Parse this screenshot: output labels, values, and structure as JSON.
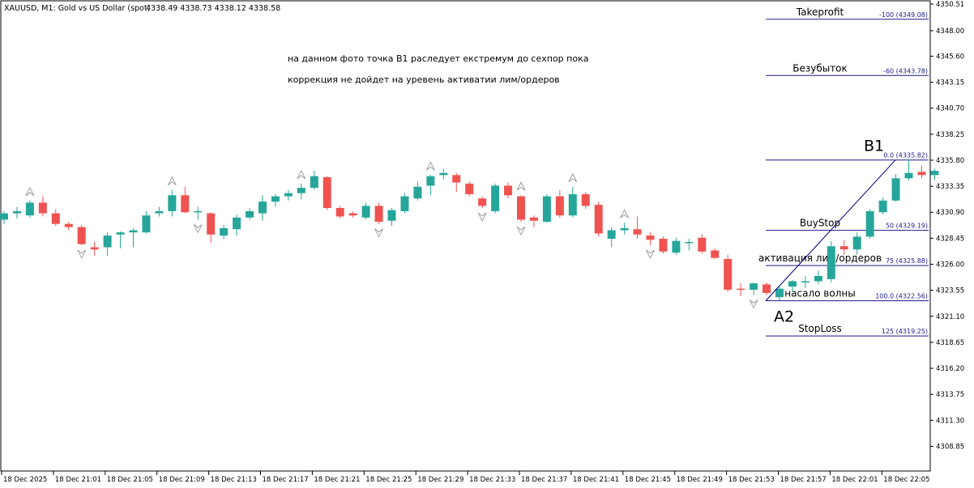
{
  "header": {
    "symbol": "XAUUSD, M1:  Gold vs US Dollar (spot)",
    "ohlc": "4338.49 4338.73 4338.12 4338.58"
  },
  "annotations": {
    "line1": "на данном фото точка B1 раследует екстремум до сехпор пока",
    "line2": "коррекция не дойдет на уревень активатии лим/ордеров"
  },
  "colors": {
    "bull": "#26a69a",
    "bear": "#ef5350",
    "fibo": "#1a1a8c",
    "trend": "#000080",
    "axis": "#000000",
    "fractal": "#a0a0a0"
  },
  "chart_data": {
    "type": "candlestick",
    "ylim": [
      4306.0,
      4350.6
    ],
    "y_ticks": [
      "4350.51",
      "4348.00",
      "4345.60",
      "4343.15",
      "4340.70",
      "4338.25",
      "4335.80",
      "4333.35",
      "4330.90",
      "4328.45",
      "4326.00",
      "4323.55",
      "4321.10",
      "4318.65",
      "4316.20",
      "4313.75",
      "4311.30",
      "4308.85"
    ],
    "y_tick_values": [
      4350.51,
      4348.0,
      4345.6,
      4343.15,
      4340.7,
      4338.25,
      4335.8,
      4333.35,
      4330.9,
      4328.45,
      4326.0,
      4323.55,
      4321.1,
      4318.65,
      4316.2,
      4313.75,
      4311.3,
      4308.85
    ],
    "x_ticks": [
      "18 Dec 2025",
      "18 Dec 21:01",
      "18 Dec 21:05",
      "18 Dec 21:09",
      "18 Dec 21:13",
      "18 Dec 21:17",
      "18 Dec 21:21",
      "18 Dec 21:25",
      "18 Dec 21:29",
      "18 Dec 21:33",
      "18 Dec 21:37",
      "18 Dec 21:41",
      "18 Dec 21:45",
      "18 Dec 21:49",
      "18 Dec 21:53",
      "18 Dec 21:57",
      "18 Dec 22:01",
      "18 Dec 22:05"
    ],
    "candles": [
      {
        "o": 4330.2,
        "h": 4331.0,
        "l": 4329.8,
        "c": 4330.8
      },
      {
        "o": 4330.8,
        "h": 4331.4,
        "l": 4330.3,
        "c": 4331.0
      },
      {
        "o": 4330.6,
        "h": 4332.0,
        "l": 4330.4,
        "c": 4331.8
      },
      {
        "o": 4331.8,
        "h": 4332.4,
        "l": 4330.5,
        "c": 4330.8
      },
      {
        "o": 4330.8,
        "h": 4331.2,
        "l": 4329.6,
        "c": 4329.8
      },
      {
        "o": 4329.8,
        "h": 4330.0,
        "l": 4329.2,
        "c": 4329.5
      },
      {
        "o": 4329.5,
        "h": 4329.7,
        "l": 4327.8,
        "c": 4327.9
      },
      {
        "o": 4327.6,
        "h": 4328.1,
        "l": 4326.8,
        "c": 4327.4
      },
      {
        "o": 4327.6,
        "h": 4329.0,
        "l": 4326.8,
        "c": 4328.7
      },
      {
        "o": 4328.8,
        "h": 4329.1,
        "l": 4327.5,
        "c": 4329.0
      },
      {
        "o": 4329.0,
        "h": 4329.4,
        "l": 4327.6,
        "c": 4329.2
      },
      {
        "o": 4329.0,
        "h": 4331.0,
        "l": 4328.9,
        "c": 4330.6
      },
      {
        "o": 4330.8,
        "h": 4331.4,
        "l": 4330.5,
        "c": 4331.0
      },
      {
        "o": 4331.0,
        "h": 4333.0,
        "l": 4330.5,
        "c": 4332.5
      },
      {
        "o": 4332.5,
        "h": 4333.3,
        "l": 4330.8,
        "c": 4330.9
      },
      {
        "o": 4331.0,
        "h": 4331.4,
        "l": 4330.2,
        "c": 4331.0
      },
      {
        "o": 4330.8,
        "h": 4330.9,
        "l": 4328.0,
        "c": 4328.8
      },
      {
        "o": 4328.7,
        "h": 4329.7,
        "l": 4328.4,
        "c": 4329.4
      },
      {
        "o": 4329.3,
        "h": 4330.7,
        "l": 4328.7,
        "c": 4330.4
      },
      {
        "o": 4330.4,
        "h": 4331.3,
        "l": 4330.2,
        "c": 4331.0
      },
      {
        "o": 4330.8,
        "h": 4332.5,
        "l": 4330.1,
        "c": 4331.9
      },
      {
        "o": 4331.9,
        "h": 4332.6,
        "l": 4331.4,
        "c": 4332.4
      },
      {
        "o": 4332.4,
        "h": 4333.0,
        "l": 4332.0,
        "c": 4332.7
      },
      {
        "o": 4332.7,
        "h": 4333.6,
        "l": 4332.1,
        "c": 4333.2
      },
      {
        "o": 4333.2,
        "h": 4334.8,
        "l": 4333.0,
        "c": 4334.3
      },
      {
        "o": 4334.2,
        "h": 4334.3,
        "l": 4331.1,
        "c": 4331.3
      },
      {
        "o": 4331.3,
        "h": 4331.5,
        "l": 4330.3,
        "c": 4330.5
      },
      {
        "o": 4330.8,
        "h": 4331.0,
        "l": 4330.4,
        "c": 4330.6
      },
      {
        "o": 4330.4,
        "h": 4331.8,
        "l": 4330.2,
        "c": 4331.5
      },
      {
        "o": 4331.5,
        "h": 4331.8,
        "l": 4329.8,
        "c": 4330.0
      },
      {
        "o": 4330.1,
        "h": 4331.3,
        "l": 4329.6,
        "c": 4331.1
      },
      {
        "o": 4331.0,
        "h": 4332.7,
        "l": 4330.8,
        "c": 4332.4
      },
      {
        "o": 4332.2,
        "h": 4333.8,
        "l": 4332.0,
        "c": 4333.3
      },
      {
        "o": 4333.4,
        "h": 4334.4,
        "l": 4332.5,
        "c": 4334.3
      },
      {
        "o": 4334.4,
        "h": 4335.0,
        "l": 4334.0,
        "c": 4334.6
      },
      {
        "o": 4334.4,
        "h": 4334.6,
        "l": 4332.8,
        "c": 4333.7
      },
      {
        "o": 4333.6,
        "h": 4333.8,
        "l": 4332.4,
        "c": 4332.6
      },
      {
        "o": 4332.2,
        "h": 4332.4,
        "l": 4331.3,
        "c": 4331.5
      },
      {
        "o": 4331.0,
        "h": 4333.6,
        "l": 4330.8,
        "c": 4333.4
      },
      {
        "o": 4333.4,
        "h": 4333.7,
        "l": 4332.2,
        "c": 4332.5
      },
      {
        "o": 4332.4,
        "h": 4332.5,
        "l": 4330.0,
        "c": 4330.2
      },
      {
        "o": 4330.4,
        "h": 4330.6,
        "l": 4329.5,
        "c": 4330.1
      },
      {
        "o": 4330.0,
        "h": 4332.6,
        "l": 4329.9,
        "c": 4332.4
      },
      {
        "o": 4332.4,
        "h": 4333.0,
        "l": 4330.4,
        "c": 4330.6
      },
      {
        "o": 4330.6,
        "h": 4333.3,
        "l": 4330.4,
        "c": 4332.6
      },
      {
        "o": 4332.6,
        "h": 4332.8,
        "l": 4331.2,
        "c": 4331.5
      },
      {
        "o": 4331.6,
        "h": 4331.9,
        "l": 4328.6,
        "c": 4328.9
      },
      {
        "o": 4328.4,
        "h": 4329.5,
        "l": 4327.6,
        "c": 4329.2
      },
      {
        "o": 4329.2,
        "h": 4329.9,
        "l": 4328.8,
        "c": 4329.4
      },
      {
        "o": 4329.3,
        "h": 4330.5,
        "l": 4328.4,
        "c": 4328.8
      },
      {
        "o": 4328.7,
        "h": 4329.0,
        "l": 4327.8,
        "c": 4328.3
      },
      {
        "o": 4328.4,
        "h": 4328.6,
        "l": 4327.0,
        "c": 4327.2
      },
      {
        "o": 4327.1,
        "h": 4328.5,
        "l": 4326.9,
        "c": 4328.2
      },
      {
        "o": 4328.0,
        "h": 4328.4,
        "l": 4327.3,
        "c": 4328.1
      },
      {
        "o": 4328.5,
        "h": 4328.8,
        "l": 4327.0,
        "c": 4327.2
      },
      {
        "o": 4327.3,
        "h": 4327.5,
        "l": 4326.5,
        "c": 4326.6
      },
      {
        "o": 4326.5,
        "h": 4326.9,
        "l": 4323.4,
        "c": 4323.6
      },
      {
        "o": 4323.7,
        "h": 4324.2,
        "l": 4323.0,
        "c": 4323.6
      },
      {
        "o": 4323.6,
        "h": 4324.3,
        "l": 4323.1,
        "c": 4324.2
      },
      {
        "o": 4324.1,
        "h": 4324.3,
        "l": 4323.1,
        "c": 4323.3
      },
      {
        "o": 4322.9,
        "h": 4323.9,
        "l": 4322.6,
        "c": 4323.7
      },
      {
        "o": 4323.9,
        "h": 4324.5,
        "l": 4323.4,
        "c": 4324.4
      },
      {
        "o": 4324.3,
        "h": 4324.9,
        "l": 4323.8,
        "c": 4324.4
      },
      {
        "o": 4324.4,
        "h": 4325.4,
        "l": 4324.1,
        "c": 4324.9
      },
      {
        "o": 4324.6,
        "h": 4328.2,
        "l": 4324.3,
        "c": 4327.7
      },
      {
        "o": 4327.7,
        "h": 4328.3,
        "l": 4326.9,
        "c": 4327.4
      },
      {
        "o": 4327.4,
        "h": 4329.0,
        "l": 4326.9,
        "c": 4328.6
      },
      {
        "o": 4328.6,
        "h": 4331.2,
        "l": 4328.4,
        "c": 4331.0
      },
      {
        "o": 4330.9,
        "h": 4332.3,
        "l": 4330.7,
        "c": 4332.0
      },
      {
        "o": 4332.0,
        "h": 4334.5,
        "l": 4331.9,
        "c": 4334.1
      },
      {
        "o": 4334.1,
        "h": 4335.9,
        "l": 4333.9,
        "c": 4334.6
      },
      {
        "o": 4334.7,
        "h": 4335.3,
        "l": 4334.1,
        "c": 4334.4
      },
      {
        "o": 4334.4,
        "h": 4335.0,
        "l": 4333.9,
        "c": 4334.8
      }
    ],
    "fractals_up": [
      2,
      13,
      23,
      33,
      40,
      44,
      48
    ],
    "fractals_down": [
      6,
      15,
      29,
      37,
      40,
      50,
      58
    ],
    "fibo": {
      "levels": [
        {
          "name": "Takeprofit",
          "label": "-100 (4349.08)",
          "value": 4349.08
        },
        {
          "name": "Безубыток",
          "label": "-60 (4343.78)",
          "value": 4343.78
        },
        {
          "name": "",
          "label": "0.0 (4335.82)",
          "value": 4335.82
        },
        {
          "name": "BuyStop",
          "label": "50 (4329.19)",
          "value": 4329.19
        },
        {
          "name": "активация лим/ордеров",
          "label": "75 (4325.88)",
          "value": 4325.88
        },
        {
          "name": "насало волны",
          "label": "100.0 (4322.56)",
          "value": 4322.56
        },
        {
          "name": "StopLoss",
          "label": "125 (4319.25)",
          "value": 4319.25
        }
      ],
      "trend_from": {
        "label": "A2",
        "value": 4322.56
      },
      "trend_to": {
        "label": "B1",
        "value": 4335.82
      }
    }
  }
}
